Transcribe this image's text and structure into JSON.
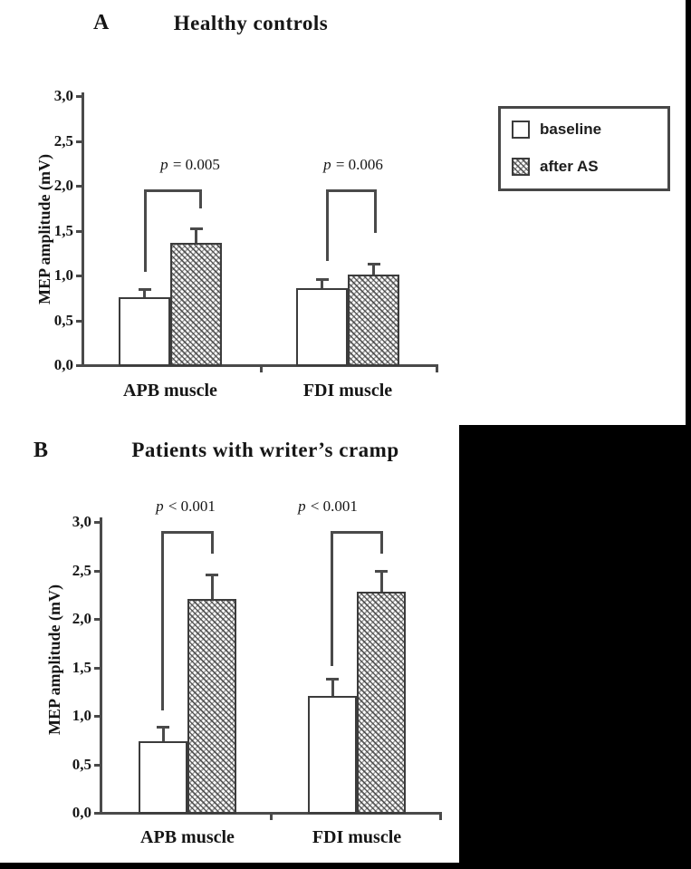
{
  "colors": {
    "ink": "#161616",
    "line": "#4a4a4a",
    "redaction": "#000000"
  },
  "legend": {
    "items": [
      {
        "label": "baseline",
        "swatch": "white-square"
      },
      {
        "label": "after AS",
        "swatch": "hatched-square"
      }
    ]
  },
  "chart_data": [
    {
      "type": "bar",
      "panel": "A",
      "title": "Healthy controls",
      "ylabel": "MEP amplitude (mV)",
      "categories": [
        "APB muscle",
        "FDI muscle"
      ],
      "series": [
        {
          "name": "baseline",
          "values": [
            0.75,
            0.85
          ],
          "errors_plus": [
            0.09,
            0.1
          ],
          "style": "white"
        },
        {
          "name": "after AS",
          "values": [
            1.35,
            1.0
          ],
          "errors_plus": [
            0.17,
            0.12
          ],
          "style": "hatched"
        }
      ],
      "significance": [
        {
          "between": "baseline vs after AS (APB muscle)",
          "label": "p = 0.005"
        },
        {
          "between": "baseline vs after AS (FDI muscle)",
          "label": "p = 0.006"
        }
      ],
      "ylim": [
        0.0,
        3.0
      ],
      "ytick_step": 0.5,
      "ytick_labels": [
        "0,0",
        "0,5",
        "1,0",
        "1,5",
        "2,0",
        "2,5",
        "3,0"
      ],
      "grid": false,
      "legend_position": "top-right"
    },
    {
      "type": "bar",
      "panel": "B",
      "title": "Patients with writer’s cramp",
      "ylabel": "MEP amplitude (mV)",
      "categories": [
        "APB muscle",
        "FDI muscle"
      ],
      "series": [
        {
          "name": "baseline",
          "values": [
            0.73,
            1.2
          ],
          "errors_plus": [
            0.15,
            0.17
          ],
          "style": "white"
        },
        {
          "name": "after AS",
          "values": [
            2.2,
            2.27
          ],
          "errors_plus": [
            0.25,
            0.22
          ],
          "style": "hatched"
        }
      ],
      "significance": [
        {
          "between": "baseline vs after AS (APB muscle)",
          "label": "p < 0.001"
        },
        {
          "between": "baseline vs after AS (FDI muscle)",
          "label": "p < 0.001"
        }
      ],
      "ylim": [
        0.0,
        3.0
      ],
      "ytick_step": 0.5,
      "ytick_labels": [
        "0,0",
        "0,5",
        "1,0",
        "1,5",
        "2,0",
        "2,5",
        "3,0"
      ],
      "grid": false,
      "legend_position": "none"
    }
  ]
}
